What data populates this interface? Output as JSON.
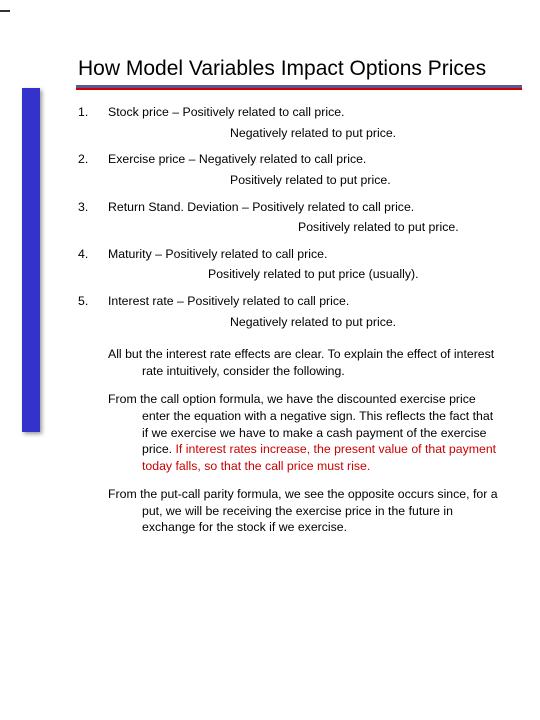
{
  "title": "How Model Variables Impact Options Prices",
  "colors": {
    "stripe": "#3333cc",
    "rule_top": "#5a5a8f",
    "rule_bottom": "#cc0000",
    "highlight": "#cc0000",
    "text": "#000000",
    "background": "#ffffff"
  },
  "typography": {
    "title_fontsize": 21,
    "body_fontsize": 12.3,
    "font_family": "Arial"
  },
  "items": [
    {
      "n": "1.",
      "main": "Stock price – Positively related to call price.",
      "sub": "Negatively related to put price."
    },
    {
      "n": "2.",
      "main": "Exercise price – Negatively related to call price.",
      "sub": "Positively related to put price."
    },
    {
      "n": "3.",
      "main": "Return Stand. Deviation – Positively related to call price.",
      "sub": "Positively related to put price."
    },
    {
      "n": "4.",
      "main": "Maturity  –         Positively related to call price.",
      "sub": "Positively related to put price (usually)."
    },
    {
      "n": "5.",
      "main": "Interest rate – Positively related to call price.",
      "sub": "Negatively related to put price."
    }
  ],
  "paragraphs": {
    "p1": "All but the interest rate effects are clear. To explain the effect of interest rate intuitively, consider the following.",
    "p2a": "From the call option formula, we have the discounted exercise price enter the equation with a negative sign. This reflects the fact that if we exercise we have to make a cash payment of the exercise price. ",
    "p2b": "If interest rates increase, the present value of that payment today falls, so that the call price must rise.",
    "p3": "From the put-call parity formula, we see the opposite occurs since, for a put, we will be receiving the exercise price in the future in exchange for the stock if we exercise."
  }
}
